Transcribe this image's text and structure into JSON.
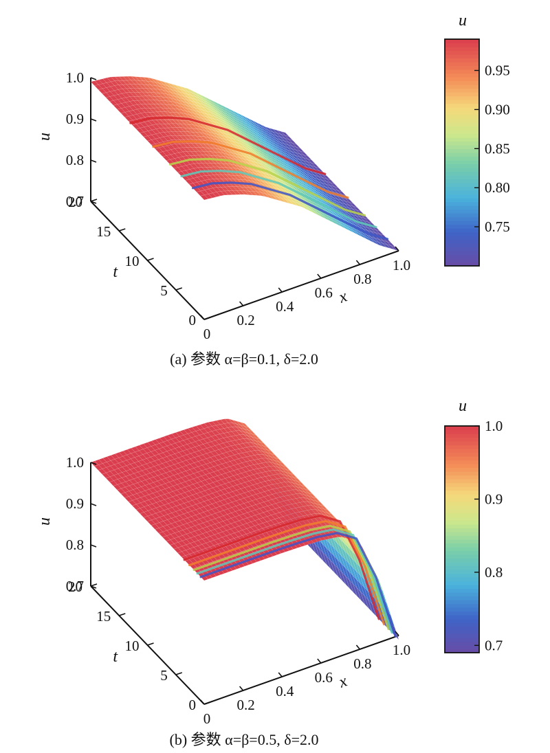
{
  "chart_data": [
    {
      "type": "surface3d",
      "caption": "(a) 参数 α=β=0.1, δ=2.0",
      "xlabel": "x",
      "ylabel": "t",
      "zlabel": "u",
      "xlim": [
        0,
        1
      ],
      "ylim": [
        0,
        20
      ],
      "zlim": [
        0.7,
        1.0
      ],
      "x_ticks": [
        "0",
        "0.2",
        "0.4",
        "0.6",
        "0.8",
        "1.0"
      ],
      "t_ticks": [
        "0",
        "5",
        "10",
        "15",
        "20"
      ],
      "u_ticks": [
        "0.7",
        "0.8",
        "0.9",
        "1.0"
      ],
      "surface_u_along_x_at_t20": {
        "x": [
          0,
          0.1,
          0.2,
          0.3,
          0.4,
          0.5,
          0.6,
          0.7,
          0.8,
          0.9,
          1.0
        ],
        "u": [
          0.99,
          0.985,
          0.97,
          0.95,
          0.92,
          0.89,
          0.85,
          0.81,
          0.77,
          0.73,
          0.7
        ]
      },
      "colorbar": {
        "label": "u",
        "range": [
          0.7,
          0.99
        ],
        "ticks": [
          "0.75",
          "0.80",
          "0.85",
          "0.90",
          "0.95"
        ],
        "tick_values": [
          0.75,
          0.8,
          0.85,
          0.9,
          0.95
        ]
      },
      "time_lines": [
        {
          "t": 13,
          "color": "#d6282e"
        },
        {
          "t": 9,
          "color": "#f07c2c"
        },
        {
          "t": 6,
          "color": "#b9d24a"
        },
        {
          "t": 4,
          "color": "#5ec8b8"
        },
        {
          "t": 2,
          "color": "#3d53c4"
        }
      ]
    },
    {
      "type": "surface3d",
      "caption": "(b) 参数 α=β=0.5, δ=2.0",
      "xlabel": "x",
      "ylabel": "t",
      "zlabel": "u",
      "xlim": [
        0,
        1
      ],
      "ylim": [
        0,
        20
      ],
      "zlim": [
        0.7,
        1.0
      ],
      "x_ticks": [
        "0",
        "0.2",
        "0.4",
        "0.6",
        "0.8",
        "1.0"
      ],
      "t_ticks": [
        "0",
        "5",
        "10",
        "15",
        "20"
      ],
      "u_ticks": [
        "0.7",
        "0.8",
        "0.9",
        "1.0"
      ],
      "surface_u_along_x_at_t20": {
        "x": [
          0,
          0.1,
          0.2,
          0.3,
          0.4,
          0.5,
          0.6,
          0.7,
          0.8,
          0.9,
          1.0
        ],
        "u": [
          1.0,
          1.0,
          1.0,
          1.0,
          1.0,
          0.999,
          0.997,
          0.99,
          0.96,
          0.85,
          0.69
        ]
      },
      "colorbar": {
        "label": "u",
        "range": [
          0.69,
          1.0
        ],
        "ticks": [
          "0.7",
          "0.8",
          "0.9",
          "1.0"
        ],
        "tick_values": [
          0.7,
          0.8,
          0.9,
          1.0
        ]
      },
      "time_lines": [
        {
          "t": 3.5,
          "color": "#d6282e"
        },
        {
          "t": 2.6,
          "color": "#f07c2c"
        },
        {
          "t": 1.8,
          "color": "#b9d24a"
        },
        {
          "t": 1.2,
          "color": "#5ec8b8"
        },
        {
          "t": 0.6,
          "color": "#3d53c4"
        }
      ]
    }
  ]
}
